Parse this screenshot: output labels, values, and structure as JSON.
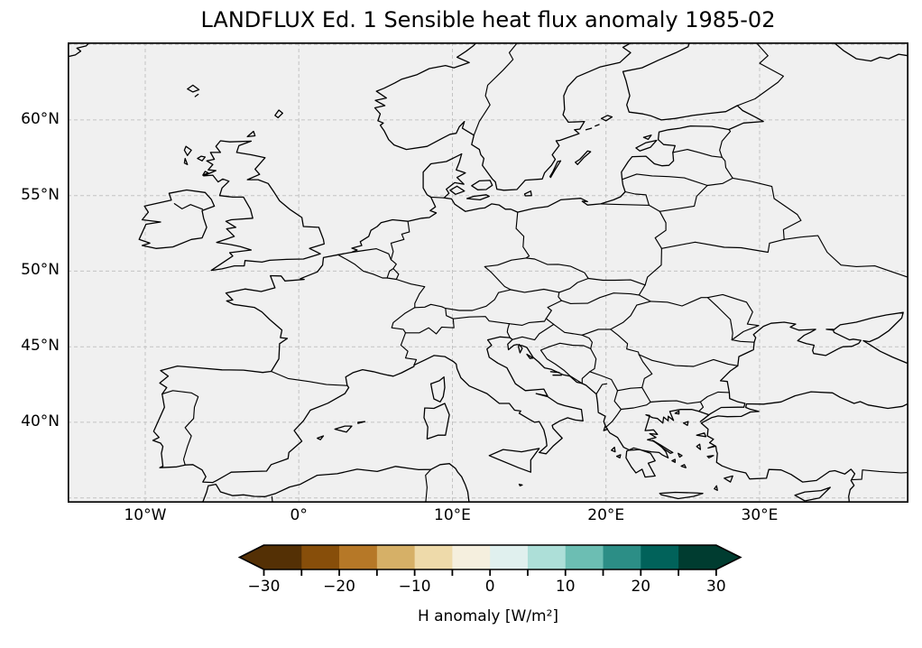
{
  "title": "LANDFLUX Ed. 1 Sensible heat flux anomaly 1985-02",
  "map": {
    "lat_tick_labels": [
      "60°N",
      "55°N",
      "50°N",
      "45°N",
      "40°N"
    ],
    "lat_tick_values": [
      60,
      55,
      50,
      45,
      40
    ],
    "lon_tick_labels": [
      "10°W",
      "0°",
      "10°E",
      "20°E",
      "30°E"
    ],
    "lon_tick_values": [
      -10,
      0,
      10,
      20,
      30
    ],
    "background_color": "#f0f0f0",
    "line_color": "#000000",
    "gridline_color": "#c3c3c3"
  },
  "colorbar": {
    "label": "H anomaly [W/m²]",
    "bin_edges": [
      -30,
      -25,
      -20,
      -15,
      -10,
      -5,
      0,
      5,
      10,
      15,
      20,
      25,
      30
    ],
    "bin_colors": [
      "#543005",
      "#874e0a",
      "#b67827",
      "#d6b067",
      "#eedaaa",
      "#f5efde",
      "#e0f0ee",
      "#addfd8",
      "#6cbeb3",
      "#2c8e86",
      "#01625a",
      "#003c30"
    ],
    "under_arrow_color": "#543005",
    "over_arrow_color": "#003c30",
    "major_tick_values": [
      -30,
      -20,
      -10,
      0,
      10,
      20,
      30
    ],
    "major_tick_labels": [
      "−30",
      "−20",
      "−10",
      "0",
      "10",
      "20",
      "30"
    ]
  },
  "chart_data": {
    "type": "heatmap",
    "subtype": "geographic map of Europe with discrete colorbar",
    "title": "LANDFLUX Ed. 1 Sensible heat flux anomaly 1985-02",
    "x_axis": {
      "tick_labels": [
        "10°W",
        "0°",
        "10°E",
        "20°E",
        "30°E"
      ],
      "lon_range": [
        -15,
        40
      ]
    },
    "y_axis": {
      "tick_labels": [
        "60°N",
        "55°N",
        "50°N",
        "45°N",
        "40°N"
      ],
      "lat_range": [
        35,
        65
      ]
    },
    "gridlines": "dashed gray, at labeled ticks",
    "colorbar": {
      "label": "H anomaly [W/m²]",
      "tick_values": [
        -30,
        -20,
        -10,
        0,
        10,
        20,
        30
      ],
      "bin_edges": [
        -30,
        -25,
        -20,
        -15,
        -10,
        -5,
        0,
        5,
        10,
        15,
        20,
        25,
        30
      ],
      "bin_colors": [
        "#543005",
        "#874e0a",
        "#b67827",
        "#d6b067",
        "#eedaaa",
        "#f5efde",
        "#e0f0ee",
        "#addfd8",
        "#6cbeb3",
        "#2c8e86",
        "#01625a",
        "#003c30"
      ],
      "extend": "both"
    },
    "values_shown": "no shaded anomaly field visible; map displays only coastlines and country borders on plain background"
  }
}
